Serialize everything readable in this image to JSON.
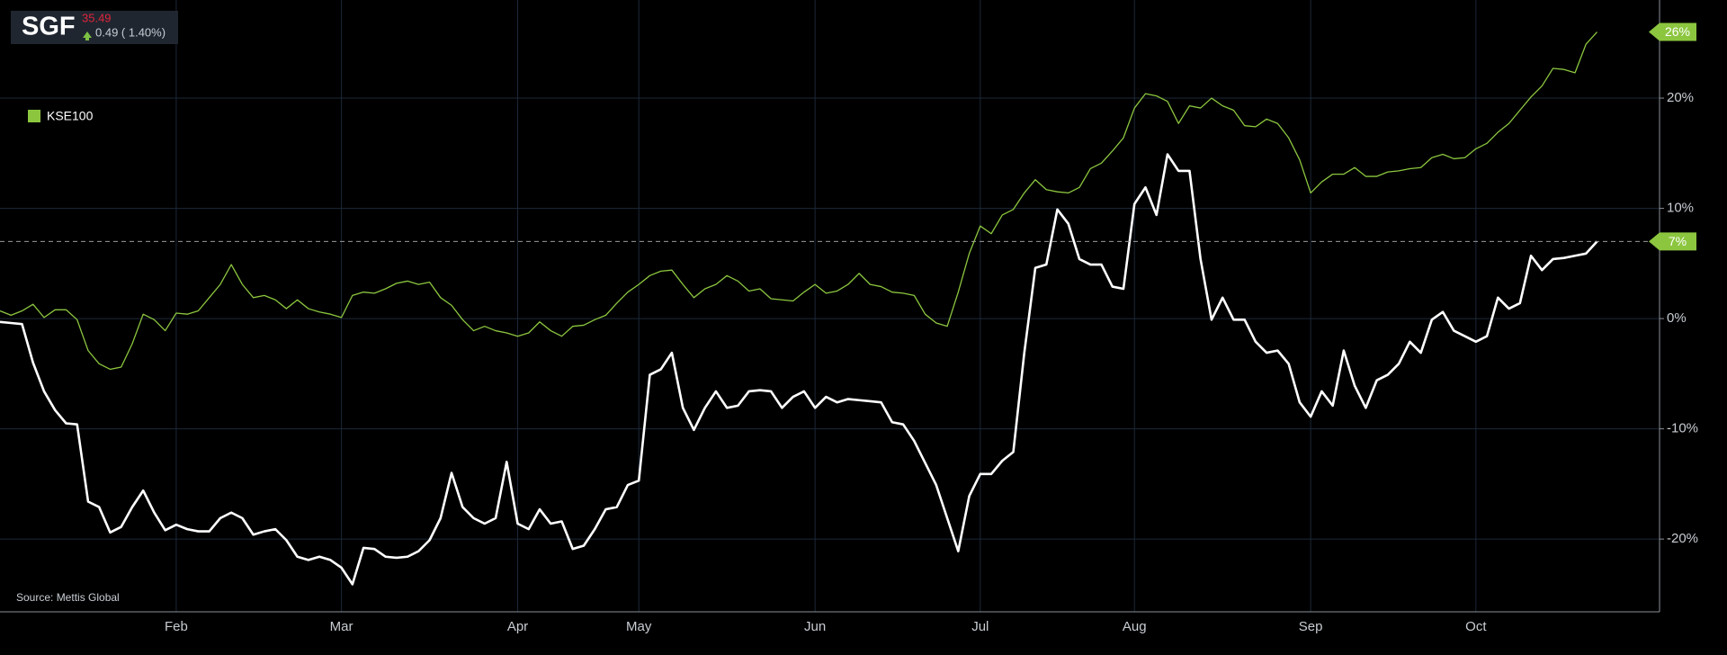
{
  "chart_data": {
    "type": "line",
    "price": 35.49,
    "change": "0.49 ( 1.40%)",
    "source": "Source: Mettis Global",
    "legend_position": "top-left",
    "grid": true,
    "ylim": [
      -26.6,
      28.9
    ],
    "yticks": [
      {
        "value": -20,
        "label": "-20%"
      },
      {
        "value": -10,
        "label": "-10%"
      },
      {
        "value": 0,
        "label": "0%"
      },
      {
        "value": 10,
        "label": "10%"
      },
      {
        "value": 20,
        "label": "20%"
      }
    ],
    "categories": [
      null,
      null,
      null,
      null,
      null,
      null,
      null,
      null,
      null,
      null,
      null,
      null,
      null,
      null,
      null,
      null,
      "Feb",
      null,
      null,
      null,
      null,
      null,
      null,
      null,
      null,
      null,
      null,
      null,
      null,
      null,
      null,
      "Mar",
      null,
      null,
      null,
      null,
      null,
      null,
      null,
      null,
      null,
      null,
      null,
      null,
      null,
      null,
      null,
      "Apr",
      null,
      null,
      null,
      null,
      null,
      null,
      null,
      null,
      null,
      null,
      "May",
      null,
      null,
      null,
      null,
      null,
      null,
      null,
      null,
      null,
      null,
      null,
      null,
      null,
      null,
      null,
      "Jun",
      null,
      null,
      null,
      null,
      null,
      null,
      null,
      null,
      null,
      null,
      null,
      null,
      null,
      null,
      "Jul",
      null,
      null,
      null,
      null,
      null,
      null,
      null,
      null,
      null,
      null,
      null,
      null,
      null,
      "Aug",
      null,
      null,
      null,
      null,
      null,
      null,
      null,
      null,
      null,
      null,
      null,
      null,
      null,
      null,
      null,
      "Sep",
      null,
      null,
      null,
      null,
      null,
      null,
      null,
      null,
      null,
      null,
      null,
      null,
      null,
      null,
      "Oct",
      null,
      null,
      null,
      null,
      null,
      null,
      null,
      null,
      null,
      null,
      null
    ],
    "series": [
      {
        "name": "SGF",
        "color": "#ffffff",
        "legend": false,
        "last_label": "7%",
        "current_line": true,
        "values": [
          -0.3,
          -0.4,
          -0.5,
          -4.0,
          -6.6,
          -8.3,
          -9.5,
          -9.6,
          -16.6,
          -17.1,
          -19.4,
          -18.9,
          -17.1,
          -15.6,
          -17.6,
          -19.2,
          -18.7,
          -19.1,
          -19.3,
          -19.3,
          -18.1,
          -17.6,
          -18.1,
          -19.6,
          -19.3,
          -19.1,
          -20.1,
          -21.6,
          -21.9,
          -21.6,
          -21.9,
          -22.6,
          -24.1,
          -20.8,
          -20.9,
          -21.6,
          -21.7,
          -21.6,
          -21.1,
          -20.1,
          -18.1,
          -14.0,
          -17.1,
          -18.1,
          -18.6,
          -18.1,
          -13.0,
          -18.6,
          -19.1,
          -17.3,
          -18.6,
          -18.4,
          -20.9,
          -20.6,
          -19.1,
          -17.3,
          -17.1,
          -15.1,
          -14.7,
          -5.1,
          -4.6,
          -3.1,
          -8.1,
          -10.1,
          -8.1,
          -6.6,
          -8.1,
          -7.9,
          -6.6,
          -6.5,
          -6.6,
          -8.1,
          -7.1,
          -6.6,
          -8.1,
          -7.1,
          -7.6,
          -7.3,
          -7.4,
          -7.5,
          -7.6,
          -9.4,
          -9.6,
          -11.1,
          -13.1,
          -15.1,
          -18.1,
          -21.1,
          -16.1,
          -14.1,
          -14.1,
          -12.9,
          -12.1,
          -3.1,
          4.6,
          4.9,
          9.9,
          8.6,
          5.4,
          4.9,
          4.9,
          2.9,
          2.7,
          10.4,
          11.9,
          9.4,
          14.9,
          13.4,
          13.4,
          5.4,
          -0.1,
          1.9,
          -0.1,
          -0.1,
          -2.1,
          -3.1,
          -2.9,
          -4.1,
          -7.6,
          -8.9,
          -6.6,
          -7.9,
          -2.9,
          -6.1,
          -8.1,
          -5.6,
          -5.1,
          -4.1,
          -2.1,
          -3.1,
          -0.1,
          0.6,
          -1.1,
          -1.6,
          -2.1,
          -1.6,
          1.9,
          0.9,
          1.4,
          5.7,
          4.4,
          5.4,
          5.5,
          5.7,
          5.9,
          7
        ]
      },
      {
        "name": "KSE100",
        "color": "#8cc63f",
        "legend": true,
        "last_label": "26%",
        "current_line": false,
        "values": [
          0.7,
          0.3,
          0.7,
          1.3,
          0.1,
          0.8,
          0.8,
          -0.1,
          -2.9,
          -4.1,
          -4.6,
          -4.4,
          -2.3,
          0.4,
          -0.1,
          -1.1,
          0.5,
          0.4,
          0.7,
          1.9,
          3.1,
          4.9,
          3.1,
          1.9,
          2.1,
          1.7,
          0.9,
          1.7,
          0.9,
          0.6,
          0.4,
          0.1,
          2.1,
          2.4,
          2.3,
          2.7,
          3.2,
          3.4,
          3.1,
          3.3,
          1.9,
          1.2,
          -0.1,
          -1.1,
          -0.7,
          -1.1,
          -1.3,
          -1.6,
          -1.3,
          -0.3,
          -1.1,
          -1.6,
          -0.7,
          -0.6,
          -0.1,
          0.3,
          1.4,
          2.4,
          3.1,
          3.9,
          4.3,
          4.4,
          3.1,
          1.9,
          2.7,
          3.1,
          3.9,
          3.4,
          2.5,
          2.7,
          1.8,
          1.7,
          1.6,
          2.4,
          3.1,
          2.3,
          2.5,
          3.1,
          4.1,
          3.1,
          2.9,
          2.4,
          2.3,
          2.1,
          0.4,
          -0.4,
          -0.7,
          2.4,
          5.9,
          8.4,
          7.7,
          9.4,
          9.9,
          11.4,
          12.6,
          11.7,
          11.5,
          11.4,
          11.9,
          13.6,
          14.1,
          15.2,
          16.4,
          19.1,
          20.4,
          20.2,
          19.7,
          17.7,
          19.3,
          19.1,
          20.0,
          19.3,
          18.9,
          17.5,
          17.4,
          18.1,
          17.7,
          16.4,
          14.4,
          11.4,
          12.4,
          13.1,
          13.1,
          13.7,
          12.9,
          12.9,
          13.3,
          13.4,
          13.6,
          13.7,
          14.6,
          14.9,
          14.5,
          14.6,
          15.4,
          15.9,
          16.9,
          17.7,
          18.9,
          20.1,
          21.1,
          22.7,
          22.6,
          22.3,
          24.9,
          26
        ]
      }
    ]
  }
}
